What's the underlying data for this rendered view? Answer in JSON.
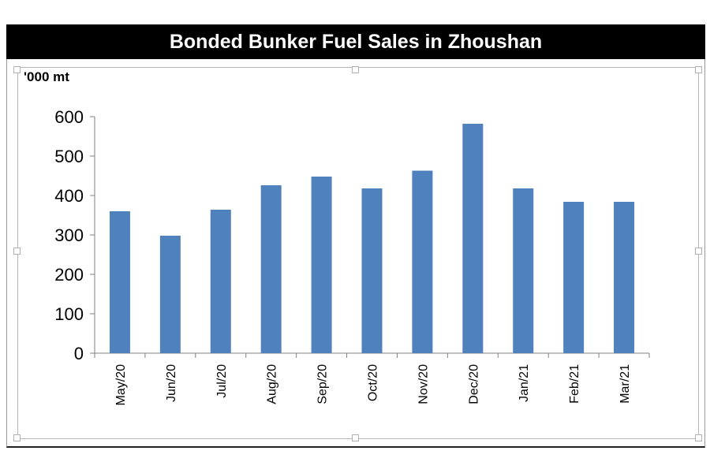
{
  "chart_data": {
    "type": "bar",
    "title": "Bonded Bunker Fuel Sales in Zhoushan",
    "ylabel": "'000 mt",
    "xlabel": "",
    "categories": [
      "May/20",
      "Jun/20",
      "Jul/20",
      "Aug/20",
      "Sep/20",
      "Oct/20",
      "Nov/20",
      "Dec/20",
      "Jan/21",
      "Feb/21",
      "Mar/21"
    ],
    "values": [
      360,
      298,
      364,
      426,
      448,
      418,
      463,
      582,
      418,
      384,
      384
    ],
    "ylim": [
      0,
      600
    ],
    "yticks": [
      "0",
      "100",
      "200",
      "300",
      "400",
      "500",
      "600"
    ],
    "grid": false,
    "legend": "none",
    "bar_color": "#4f81bd"
  }
}
